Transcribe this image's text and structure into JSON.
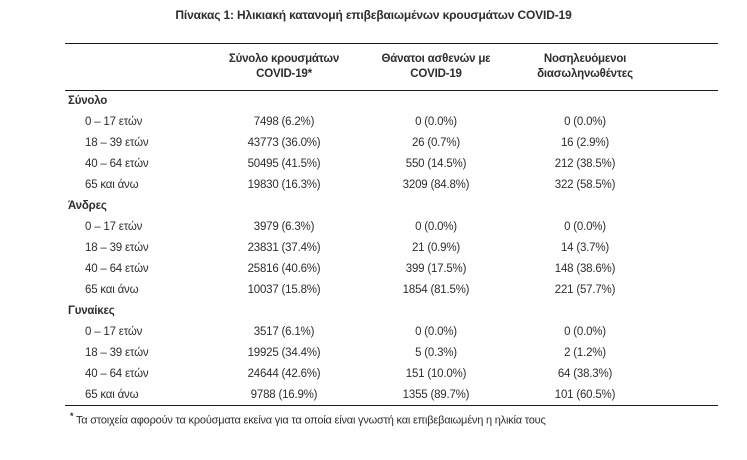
{
  "title": "Πίνακας 1: Ηλικιακή κατανομή επιβεβαιωμένων κρουσμάτων COVID-19",
  "colors": {
    "text": "#2e2e2e",
    "rule": "#1c1c1c",
    "background": "#ffffff"
  },
  "table": {
    "columns": [
      {
        "line1": "Σύνολο κρουσμάτων",
        "line2": "COVID-19*"
      },
      {
        "line1": "Θάνατοι ασθενών με",
        "line2": "COVID-19"
      },
      {
        "line1": "Νοσηλευόμενοι",
        "line2": "διασωληνωθέντες"
      }
    ],
    "sections": [
      {
        "label": "Σύνολο",
        "rows": [
          {
            "age": "0 – 17 ετών",
            "cases": "7498 (6.2%)",
            "deaths": "0 (0.0%)",
            "intubated": "0 (0.0%)"
          },
          {
            "age": "18 – 39 ετών",
            "cases": "43773 (36.0%)",
            "deaths": "26 (0.7%)",
            "intubated": "16 (2.9%)"
          },
          {
            "age": "40 – 64 ετών",
            "cases": "50495 (41.5%)",
            "deaths": "550 (14.5%)",
            "intubated": "212 (38.5%)"
          },
          {
            "age": "65 και άνω",
            "cases": "19830 (16.3%)",
            "deaths": "3209 (84.8%)",
            "intubated": "322 (58.5%)"
          }
        ]
      },
      {
        "label": "Άνδρες",
        "rows": [
          {
            "age": "0 – 17 ετών",
            "cases": "3979 (6.3%)",
            "deaths": "0 (0.0%)",
            "intubated": "0 (0.0%)"
          },
          {
            "age": "18 – 39 ετών",
            "cases": "23831 (37.4%)",
            "deaths": "21 (0.9%)",
            "intubated": "14 (3.7%)"
          },
          {
            "age": "40 – 64 ετών",
            "cases": "25816 (40.6%)",
            "deaths": "399 (17.5%)",
            "intubated": "148 (38.6%)"
          },
          {
            "age": "65 και άνω",
            "cases": "10037 (15.8%)",
            "deaths": "1854 (81.5%)",
            "intubated": "221 (57.7%)"
          }
        ]
      },
      {
        "label": "Γυναίκες",
        "rows": [
          {
            "age": "0 – 17 ετών",
            "cases": "3517 (6.1%)",
            "deaths": "0 (0.0%)",
            "intubated": "0 (0.0%)"
          },
          {
            "age": "18 – 39 ετών",
            "cases": "19925 (34.4%)",
            "deaths": "5 (0.3%)",
            "intubated": "2 (1.2%)"
          },
          {
            "age": "40 – 64 ετών",
            "cases": "24644 (42.6%)",
            "deaths": "151 (10.0%)",
            "intubated": "64 (38.3%)"
          },
          {
            "age": "65 και άνω",
            "cases": "9788 (16.9%)",
            "deaths": "1355 (89.7%)",
            "intubated": "101 (60.5%)"
          }
        ]
      }
    ]
  },
  "footnote": {
    "marker": "*",
    "text": "Τα στοιχεία αφορούν τα κρούσματα εκείνα για τα οποία είναι γνωστή και επιβεβαιωμένη η ηλικία τους"
  }
}
